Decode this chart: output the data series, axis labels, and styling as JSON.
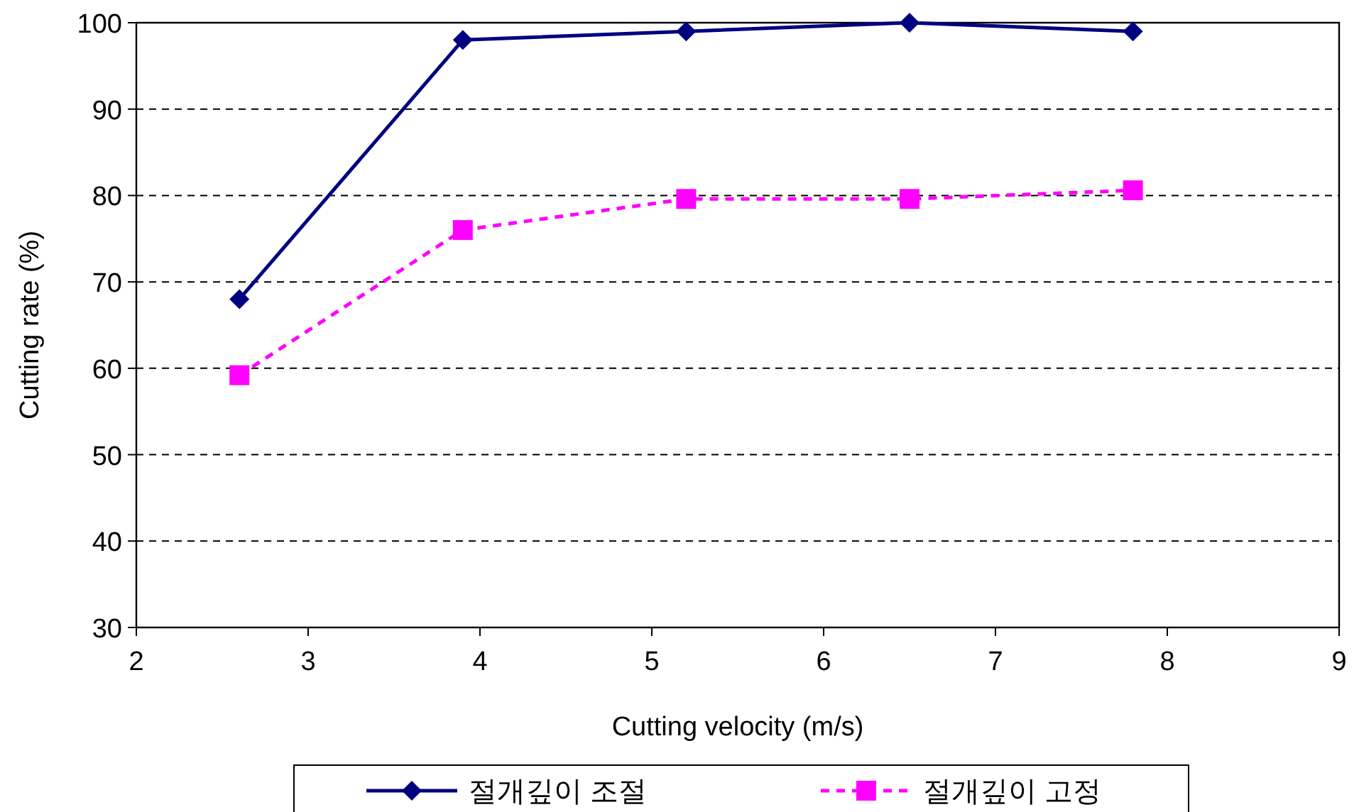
{
  "chart_data": {
    "type": "line",
    "xlabel": "Cutting velocity (m/s)",
    "ylabel": "Cutting rate (%)",
    "x": [
      2.6,
      3.9,
      5.2,
      6.5,
      7.8
    ],
    "series": [
      {
        "name": "절개깊이 조절",
        "color": "#000080",
        "values": [
          68,
          98,
          99,
          100,
          99
        ],
        "marker": "diamond",
        "line_style": "solid"
      },
      {
        "name": "절개깊이 고정",
        "color": "#ff00ff",
        "values": [
          59.2,
          76,
          79.6,
          79.6,
          80.6
        ],
        "marker": "square",
        "line_style": "dashed"
      }
    ],
    "xlim": [
      2,
      9
    ],
    "xticks": [
      2,
      3,
      4,
      5,
      6,
      7,
      8,
      9
    ],
    "ylim": [
      30,
      100
    ],
    "yticks": [
      30,
      40,
      50,
      60,
      70,
      80,
      90,
      100
    ],
    "grid": "y",
    "legend": "bottom"
  }
}
